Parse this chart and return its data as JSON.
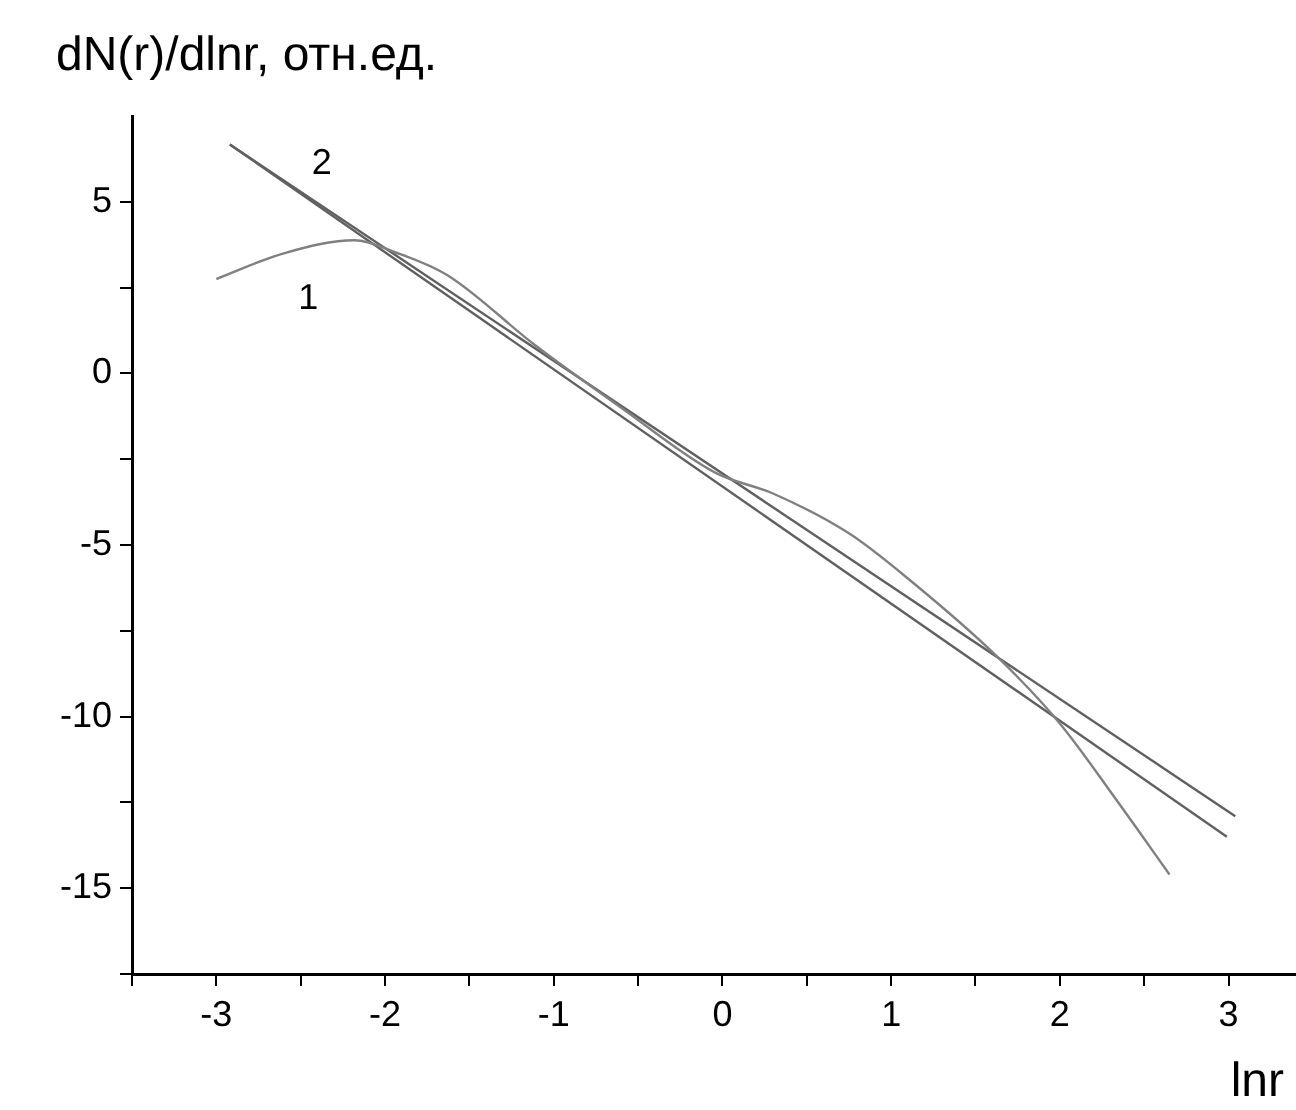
{
  "chart_data": {
    "type": "line",
    "xlabel": "lnr",
    "ylabel": "dN(r)/dlnr, отн.ед.",
    "xlim": [
      -3.5,
      3.4
    ],
    "ylim": [
      -17.5,
      7.5
    ],
    "xticks": [
      {
        "value": -3.5,
        "label": null
      },
      -3,
      {
        "value": -2.5,
        "label": null
      },
      -2,
      {
        "value": -1.5,
        "label": null
      },
      -1,
      {
        "value": -0.5,
        "label": null
      },
      0,
      {
        "value": 0.5,
        "label": null
      },
      1,
      {
        "value": 1.5,
        "label": null
      },
      2,
      {
        "value": 2.5,
        "label": null
      },
      3
    ],
    "yticks": [
      {
        "value": -17.5,
        "label": null
      },
      -15,
      {
        "value": -12.5,
        "label": null
      },
      -10,
      {
        "value": -7.5,
        "label": null
      },
      -5,
      {
        "value": -2.5,
        "label": null
      },
      0,
      {
        "value": 2.5,
        "label": null
      },
      5
    ],
    "grid": false,
    "legend": false,
    "marker": "none",
    "line_style": "solid",
    "series": [
      {
        "name": "1",
        "color": "#808080",
        "x": [
          -3.0,
          -2.6,
          -2.18,
          -1.94,
          -1.63,
          -1.11,
          -0.6,
          -0.04,
          0.3,
          0.75,
          1.11,
          1.63,
          2.0,
          2.34,
          2.65
        ],
        "values": [
          2.75,
          3.5,
          3.88,
          3.53,
          2.86,
          0.82,
          -1.0,
          -2.9,
          -3.5,
          -4.66,
          -6.02,
          -8.26,
          -10.2,
          -12.46,
          -14.6
        ]
      },
      {
        "name": "2",
        "color": "#606060",
        "x": [
          -2.92,
          3.04
        ],
        "values": [
          6.67,
          -12.9
        ]
      },
      {
        "color": "#606060",
        "x": [
          -2.92,
          2.99
        ],
        "values": [
          6.67,
          -13.5
        ]
      }
    ]
  }
}
